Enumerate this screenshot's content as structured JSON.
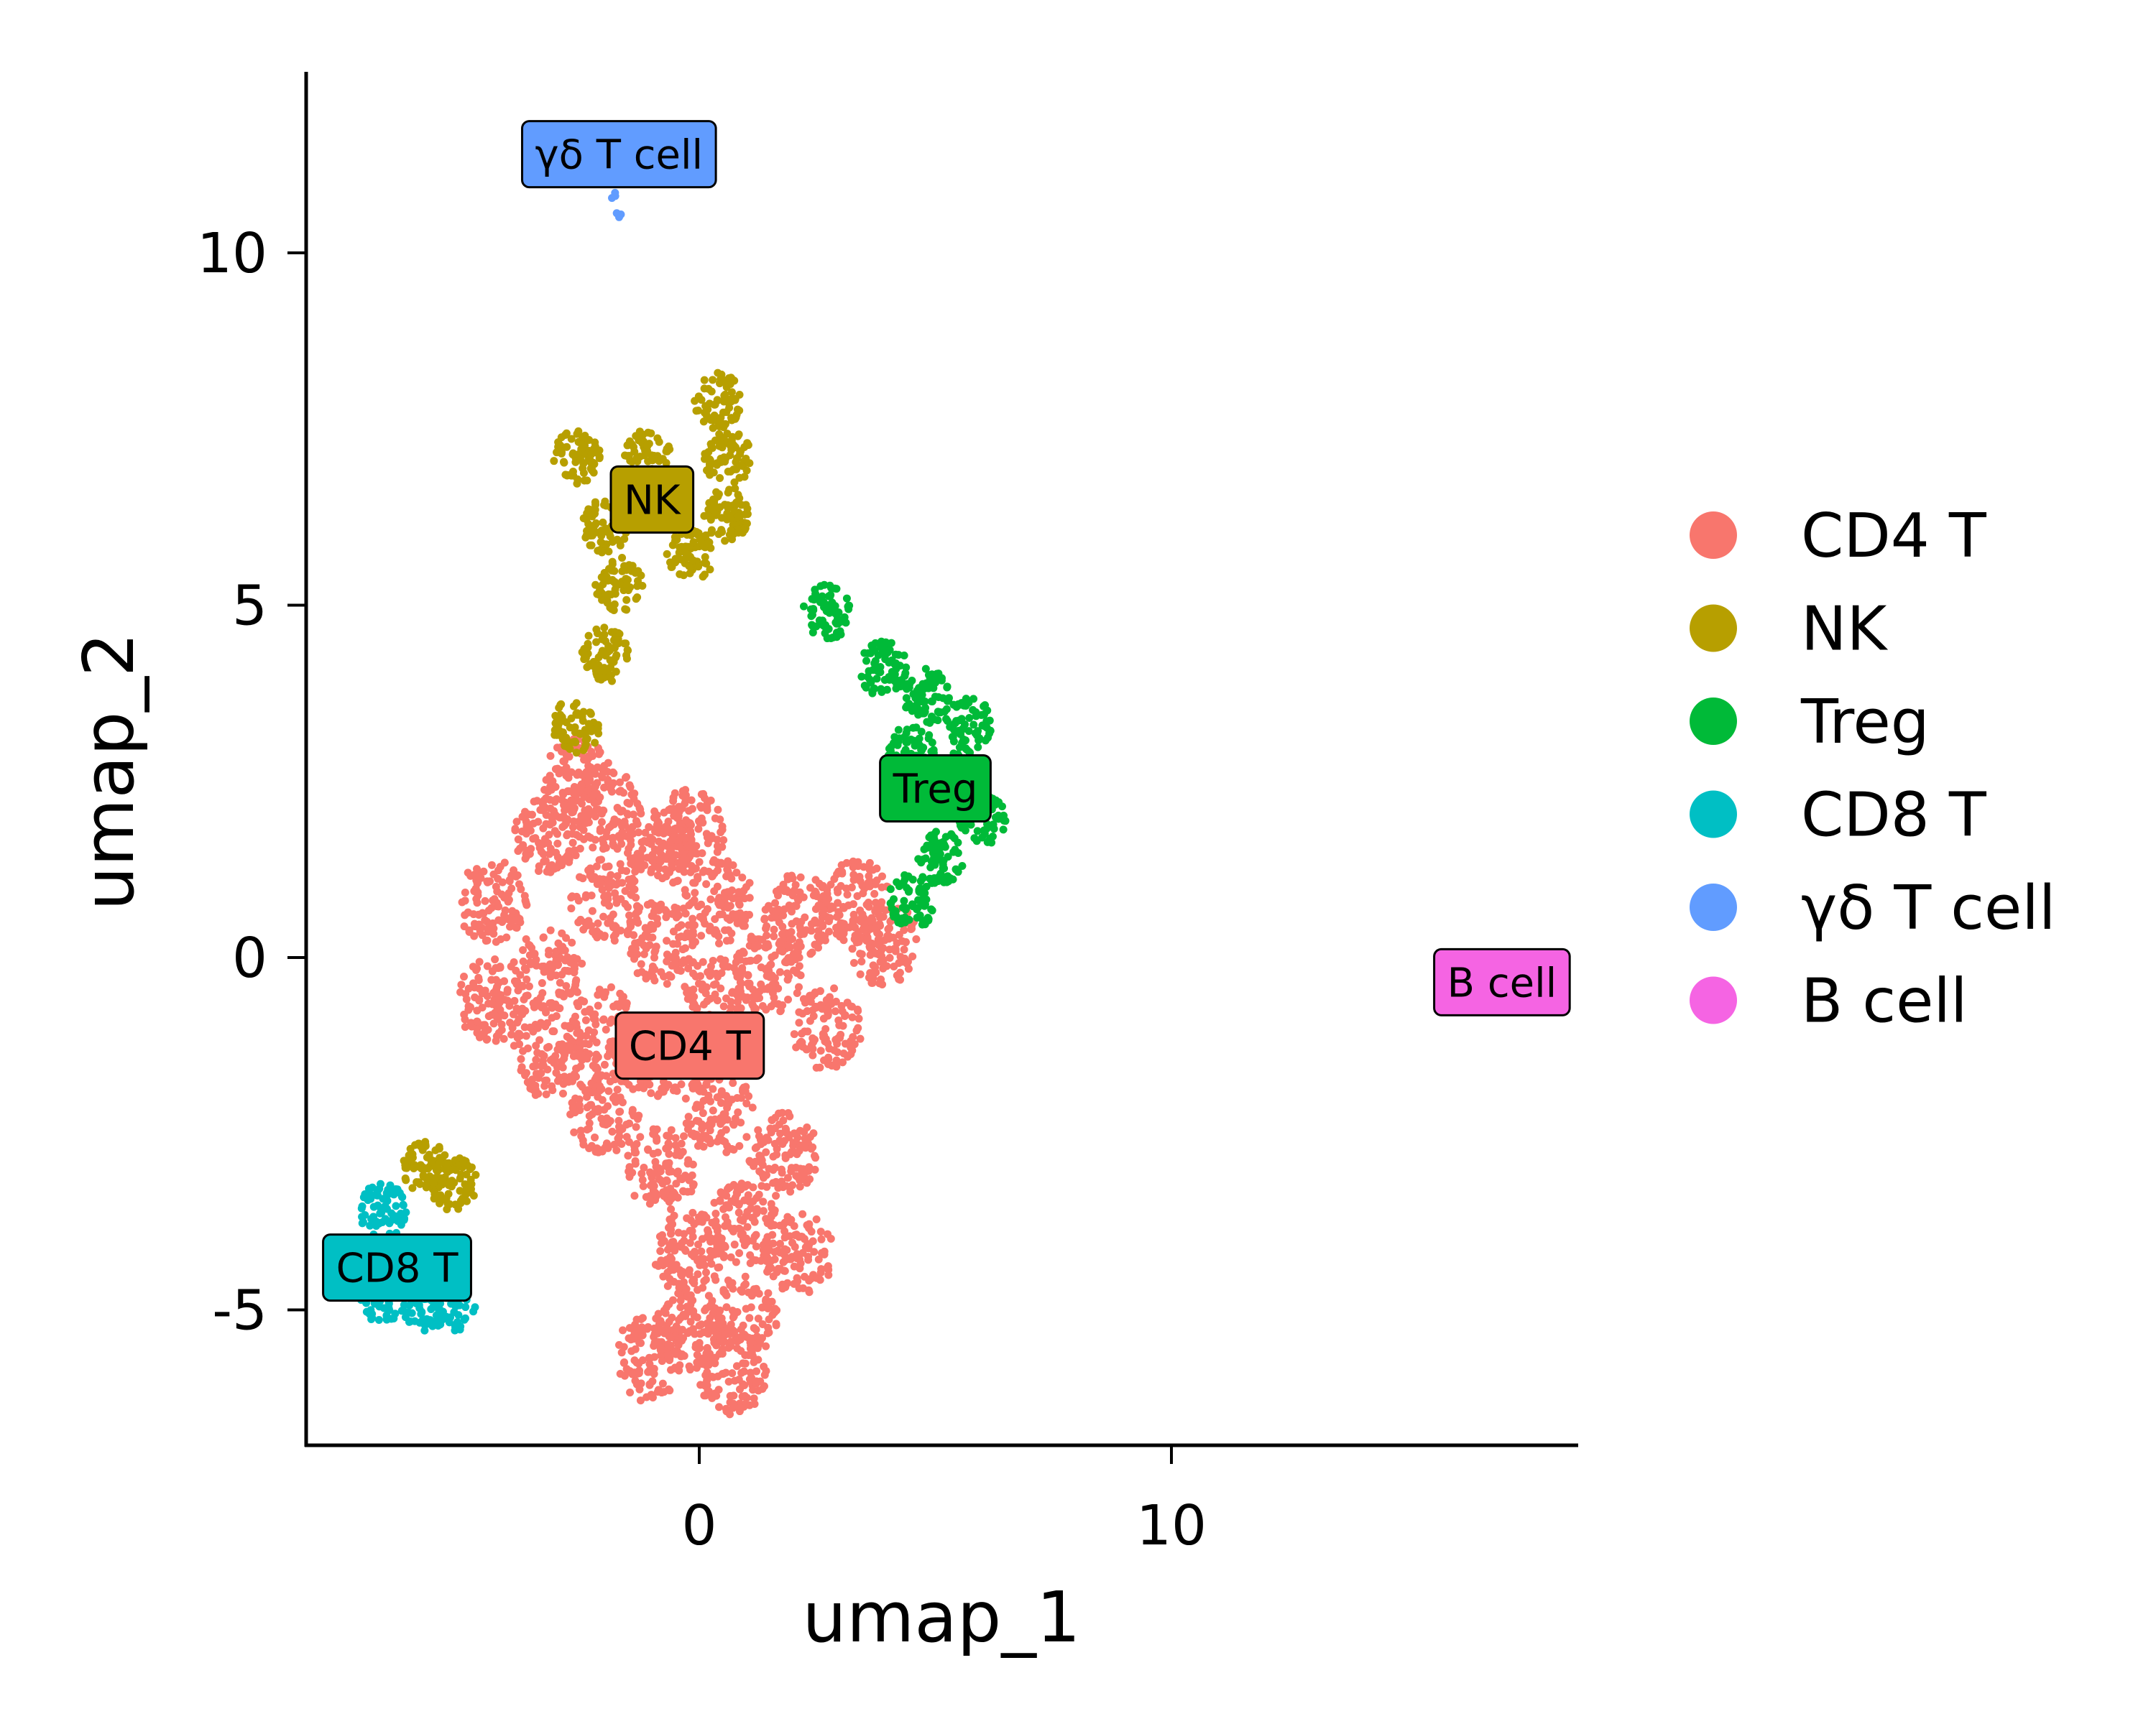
{
  "chart_data": {
    "type": "scatter",
    "xlabel": "umap_1",
    "ylabel": "umap_2",
    "xlim": [
      -8.3,
      18.6
    ],
    "ylim": [
      -6.9,
      12.6
    ],
    "xticks": [
      0,
      10
    ],
    "xtick_labels": [
      "0",
      "10"
    ],
    "yticks": [
      -5,
      0,
      5,
      10
    ],
    "ytick_labels": [
      "-5",
      "0",
      "5",
      "10"
    ],
    "grid": false,
    "legend_position": "right",
    "series": [
      {
        "name": "CD4 T",
        "color": "#F8766D",
        "label_at": [
          -0.2,
          -1.25
        ],
        "points": [
          [
            -4.4,
            0.8
          ],
          [
            -4.4,
            -0.6
          ],
          [
            -3.2,
            1.8
          ],
          [
            -3.2,
            -0.2
          ],
          [
            -3.2,
            -1.4
          ],
          [
            -2.0,
            2.1
          ],
          [
            -2.0,
            0.8
          ],
          [
            -2.0,
            -1.0
          ],
          [
            -2.0,
            -2.2
          ],
          [
            -0.8,
            1.6
          ],
          [
            -0.8,
            0.2
          ],
          [
            -0.8,
            -1.4
          ],
          [
            -0.8,
            -3.0
          ],
          [
            -0.2,
            1.8
          ],
          [
            0.4,
            0.8
          ],
          [
            0.4,
            -0.6
          ],
          [
            0.4,
            -2.2
          ],
          [
            -0.2,
            -4.2
          ],
          [
            0.9,
            -3.8
          ],
          [
            0.9,
            -5.1
          ],
          [
            -0.2,
            -5.3
          ],
          [
            2.1,
            -4.2
          ],
          [
            1.8,
            -2.8
          ],
          [
            2.1,
            0.6
          ],
          [
            3.3,
            0.8
          ],
          [
            3.9,
            0.2
          ],
          [
            2.7,
            -1.0
          ],
          [
            1.5,
            -0.2
          ],
          [
            -1.1,
            -5.7
          ],
          [
            0.7,
            -5.9
          ],
          [
            -2.6,
            2.5
          ]
        ]
      },
      {
        "name": "NK",
        "color": "#B79F00",
        "label_at": [
          -1.0,
          6.5
        ],
        "points": [
          [
            -2.6,
            7.1
          ],
          [
            -2.0,
            6.1
          ],
          [
            -1.7,
            5.3
          ],
          [
            -2.0,
            4.3
          ],
          [
            -2.6,
            3.3
          ],
          [
            0.4,
            7.9
          ],
          [
            0.6,
            7.1
          ],
          [
            0.6,
            6.3
          ],
          [
            -0.2,
            5.7
          ],
          [
            -1.1,
            7.1
          ],
          [
            -5.8,
            -3.0
          ],
          [
            -5.2,
            -3.2
          ]
        ]
      },
      {
        "name": "Treg",
        "color": "#00BA38",
        "label_at": [
          5.0,
          2.4
        ],
        "points": [
          [
            2.7,
            4.9
          ],
          [
            3.9,
            4.1
          ],
          [
            4.8,
            3.7
          ],
          [
            4.5,
            2.9
          ],
          [
            5.4,
            2.5
          ],
          [
            6.0,
            2.0
          ],
          [
            5.1,
            1.4
          ],
          [
            4.5,
            0.8
          ],
          [
            5.7,
            3.3
          ]
        ]
      },
      {
        "name": "CD8 T",
        "color": "#00BFC4",
        "label_at": [
          -6.4,
          -4.4
        ],
        "points": [
          [
            -6.7,
            -3.6
          ],
          [
            -6.4,
            -4.4
          ],
          [
            -5.8,
            -4.9
          ],
          [
            -5.2,
            -4.9
          ],
          [
            -6.7,
            -4.8
          ]
        ]
      },
      {
        "name": "γδ T cell",
        "color": "#619CFF",
        "label_at": [
          -1.7,
          11.4
        ],
        "points": [
          [
            -1.8,
            10.8
          ],
          [
            -1.7,
            10.6
          ]
        ]
      },
      {
        "name": "B cell",
        "color": "#F564E3",
        "label_at": [
          17.0,
          -0.35
        ],
        "points": []
      }
    ]
  }
}
